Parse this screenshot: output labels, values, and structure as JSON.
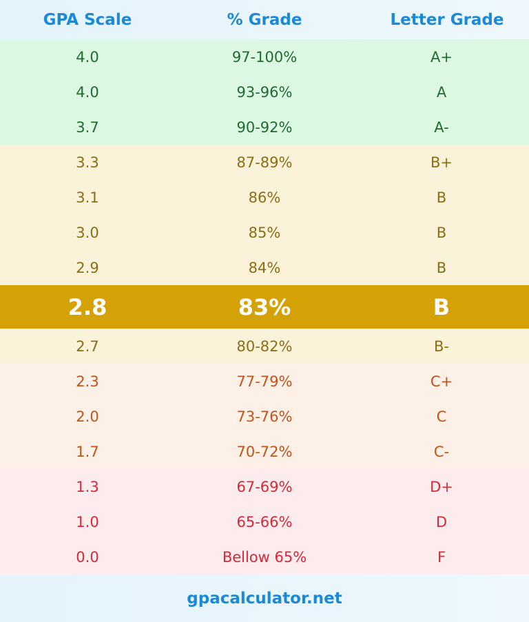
{
  "table": {
    "header": [
      "GPA Scale",
      "% Grade",
      "Letter Grade"
    ],
    "groups": [
      {
        "bg": "#dcf8e3",
        "color": "#1e6b2e",
        "rows": [
          [
            "4.0",
            "97-100%",
            "A+"
          ],
          [
            "4.0",
            "93-96%",
            "A"
          ],
          [
            "3.7",
            "90-92%",
            "A-"
          ]
        ]
      },
      {
        "bg": "#fbf3d9",
        "color": "#8a6d12",
        "rows": [
          [
            "3.3",
            "87-89%",
            "B+"
          ],
          [
            "3.1",
            "86%",
            "B"
          ],
          [
            "3.0",
            "85%",
            "B"
          ],
          [
            "2.9",
            "84%",
            "B"
          ]
        ]
      },
      {
        "bg": "#d4a106",
        "color": "#ffffff",
        "bold": true,
        "rows": [
          [
            "2.8",
            "83%",
            "B"
          ]
        ]
      },
      {
        "bg": "#fbf3d9",
        "color": "#8a6d12",
        "rows": [
          [
            "2.7",
            "80-82%",
            "B-"
          ]
        ]
      },
      {
        "bg": "#fdf0e6",
        "color": "#c0541a",
        "rows": [
          [
            "2.3",
            "77-79%",
            "C+"
          ],
          [
            "2.0",
            "73-76%",
            "C"
          ],
          [
            "1.7",
            "70-72%",
            "C-"
          ]
        ]
      },
      {
        "bg": "#fdeced",
        "color": "#d8283a",
        "rows": [
          [
            "1.3",
            "67-69%",
            "D+"
          ],
          [
            "1.0",
            "65-66%",
            "D"
          ],
          [
            "0.0",
            "Bellow 65%",
            "F"
          ]
        ]
      }
    ],
    "footer": "gpacalculator.net"
  }
}
